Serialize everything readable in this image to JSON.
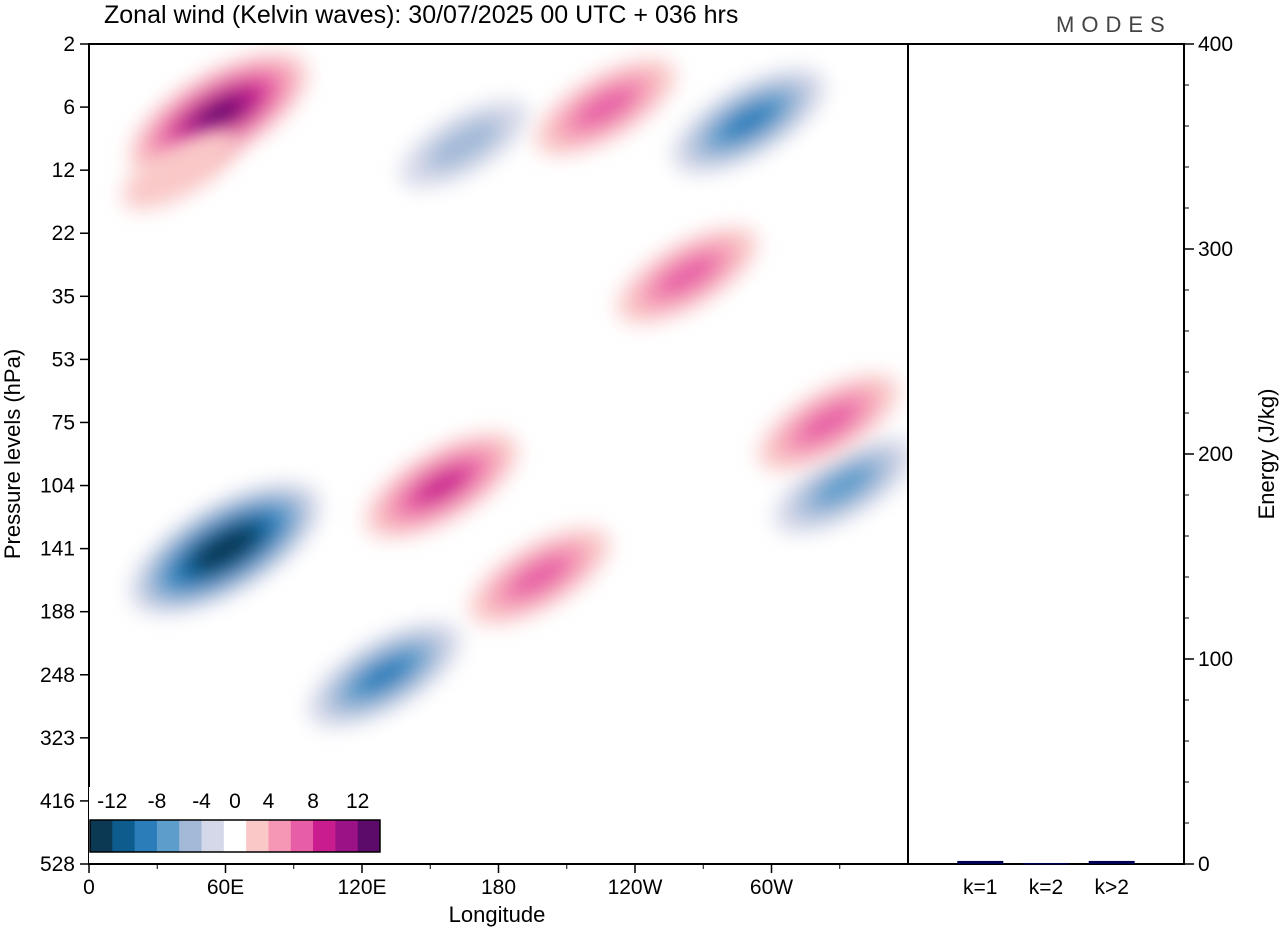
{
  "chart_data": [
    {
      "type": "heatmap",
      "title": "Zonal wind (Kelvin waves):  30/07/2025  00 UTC  + 036 hrs",
      "xlabel": "Longitude",
      "ylabel": "Pressure levels (hPa)",
      "x_ticks": [
        "0",
        "60E",
        "120E",
        "180",
        "120W",
        "60W"
      ],
      "y_ticks": [
        "2",
        "6",
        "12",
        "22",
        "35",
        "53",
        "75",
        "104",
        "141",
        "188",
        "248",
        "323",
        "416",
        "528"
      ],
      "colorbar": {
        "labels": [
          "-12",
          "-8",
          "-4",
          "0",
          "4",
          "8",
          "12"
        ],
        "levels": [
          -14,
          -12,
          -10,
          -8,
          -6,
          -4,
          -2,
          2,
          4,
          6,
          8,
          10,
          12,
          14
        ],
        "colors": [
          "#0b3953",
          "#0d5c8d",
          "#2a7db9",
          "#5c9dcc",
          "#a2bad8",
          "#d5d8e8",
          "#ffffff",
          "#f9c8c7",
          "#f597b5",
          "#e75ea6",
          "#c91c8f",
          "#9a1285",
          "#5c0b6b"
        ]
      },
      "features": [
        {
          "lon": 57,
          "level": 6.5,
          "value": 12
        },
        {
          "lon": 165,
          "level": 9,
          "value": -4
        },
        {
          "lon": 290,
          "level": 7,
          "value": -8
        },
        {
          "lon": 227,
          "level": 6,
          "value": 6
        },
        {
          "lon": 60,
          "level": 141,
          "value": -14
        },
        {
          "lon": 130,
          "level": 248,
          "value": -8
        },
        {
          "lon": 155,
          "level": 104,
          "value": 8
        },
        {
          "lon": 198,
          "level": 160,
          "value": 6
        },
        {
          "lon": 332,
          "level": 104,
          "value": -6
        },
        {
          "lon": 325,
          "level": 75,
          "value": 6
        },
        {
          "lon": 263,
          "level": 30,
          "value": 6
        },
        {
          "lon": 40,
          "level": 12,
          "value": 2
        }
      ]
    },
    {
      "type": "bar",
      "ylabel": "Energy (J/kg)",
      "categories": [
        "k=1",
        "k=2",
        "k>2"
      ],
      "values": [
        1.5,
        0.5,
        1.5
      ],
      "ylim": [
        0,
        400
      ],
      "y_ticks": [
        "0",
        "100",
        "200",
        "300",
        "400"
      ],
      "bar_color": "#000050"
    }
  ],
  "logo_text": "MODES"
}
